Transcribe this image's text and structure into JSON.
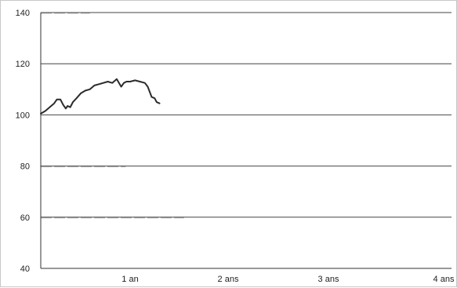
{
  "chart_data": {
    "type": "line",
    "title": "",
    "xlabel": "",
    "ylabel": "",
    "ylim": [
      40,
      140
    ],
    "xlim": [
      0,
      4
    ],
    "yticks": [
      {
        "value": 40,
        "label": "40"
      },
      {
        "value": 60,
        "label": "60"
      },
      {
        "value": 80,
        "label": "80"
      },
      {
        "value": 100,
        "label": "100"
      },
      {
        "value": 120,
        "label": "120"
      },
      {
        "value": 140,
        "label": "140"
      }
    ],
    "xticks": [
      {
        "value": 1,
        "label": "1 an"
      },
      {
        "value": 2,
        "label": "2 ans"
      },
      {
        "value": 3,
        "label": "3 ans"
      },
      {
        "value": 4,
        "label": "4 ans"
      }
    ],
    "grid": true,
    "colors": {
      "line": "#2b2b2b",
      "grid": "#444444",
      "axis": "#333333",
      "reference": "#bbbbbb"
    },
    "series": [
      {
        "x": [
          0.0,
          0.05,
          0.1,
          0.15,
          0.18,
          0.22,
          0.25,
          0.28,
          0.3,
          0.33,
          0.36,
          0.4,
          0.45,
          0.5,
          0.55,
          0.6,
          0.65,
          0.7,
          0.75,
          0.8,
          0.85,
          0.9,
          0.93,
          0.96,
          1.0,
          1.05,
          1.1,
          1.15,
          1.18,
          1.2,
          1.22,
          1.25,
          1.27,
          1.3
        ],
        "y": [
          100.5,
          101.5,
          103,
          104.5,
          106,
          106,
          104,
          102.5,
          103.5,
          103,
          105,
          106.5,
          108.5,
          109.5,
          110,
          111.5,
          112,
          112.5,
          113,
          112.5,
          114,
          111,
          112.5,
          113,
          113,
          113.5,
          113,
          112.5,
          111,
          109,
          107,
          106.5,
          105,
          104.5
        ]
      }
    ],
    "reference_lines": [
      {
        "y": 140,
        "x_end": 0.55
      },
      {
        "y": 80,
        "x_end": 0.95
      },
      {
        "y": 60,
        "x_end": 1.55
      }
    ]
  }
}
